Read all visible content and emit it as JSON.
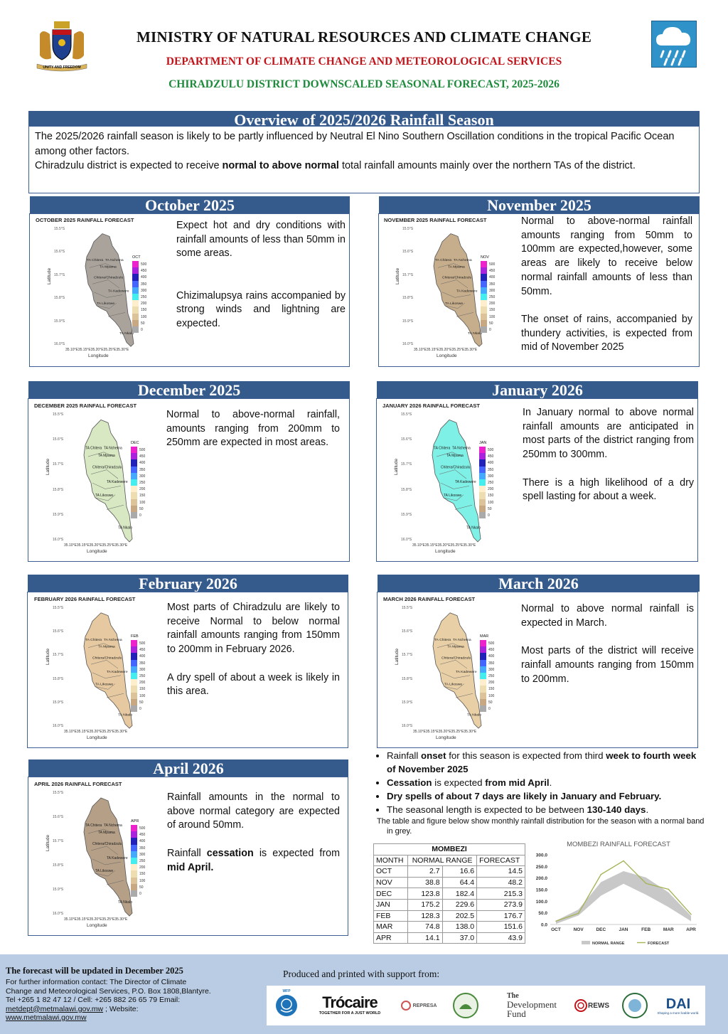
{
  "header": {
    "ministry": "MINISTRY OF NATURAL RESOURCES AND CLIMATE CHANGE",
    "department": "DEPARTMENT OF CLIMATE CHANGE AND METEOROLOGICAL SERVICES",
    "title": "CHIRADZULU DISTRICT DOWNSCALED SEASONAL FORECAST, 2025-2026",
    "coat_of_arms_motto": "UNITY AND FREEDOM",
    "icon": "rain-cloud-icon"
  },
  "overview": {
    "heading": "Overview of 2025/2026 Rainfall Season",
    "line1": "The 2025/2026 rainfall season is likely to be partly influenced by Neutral El Nino Southern Oscillation conditions in the tropical Pacific Ocean among other factors.",
    "line2_pre": "Chiradzulu district is expected to receive ",
    "line2_bold": "normal to above normal",
    "line2_post": " total rainfall amounts mainly over the northern TAs of the district."
  },
  "map_common": {
    "lat_ticks": [
      "15.5°S",
      "15.6°S",
      "15.7°S",
      "15.8°S",
      "15.9°S",
      "16.0°S"
    ],
    "lon_ticks": "35.10°E35.15°E35.20°E35.25°E35.30°E",
    "xlabel": "Longitude",
    "ylabel": "Latitude",
    "legend_values": [
      "500",
      "450",
      "400",
      "350",
      "300",
      "250",
      "200",
      "150",
      "100",
      "50",
      "0"
    ],
    "legend_colors": [
      "#ee22cc",
      "#aa22dd",
      "#2222bb",
      "#4466ff",
      "#44aaff",
      "#44eeee",
      "#ffeecc",
      "#eeddb0",
      "#ddc39a",
      "#c8a882",
      "#aaaaaa"
    ],
    "ta_labels": [
      "TA Chitera",
      "TA Nchema",
      "TA Mpama",
      "Chitera/Chiradzulu",
      "TA Kadewere",
      "TA Likoswe",
      "TA Nkalo"
    ]
  },
  "months": {
    "oct": {
      "heading": "October 2025",
      "map_title": "OCTOBER 2025 RAINFALL FORECAST",
      "legend_code": "OCT",
      "fill": "#aaa39b",
      "p1": "Expect hot and dry conditions with rainfall amounts  of less than 50mm in some areas.",
      "p2": "Chizimalupsya rains accompanied by strong winds and lightning are expected."
    },
    "nov": {
      "heading": "November 2025",
      "map_title": "NOVEMBER 2025 RAINFALL FORECAST",
      "legend_code": "NOV",
      "fill": "#c6ad8c",
      "p1": "Normal to above-normal rainfall amounts ranging from 50mm to 100mm are expected,however, some areas are likely to receive below normal rainfall amounts of less than 50mm.",
      "p2": "The onset of rains, accompanied by thundery activities, is expected from mid of November  2025"
    },
    "dec": {
      "heading": "December 2025",
      "map_title": "DECEMBER 2025 RAINFALL FORECAST",
      "legend_code": "DEC",
      "fill": "#d7e8c2",
      "p1": "Normal to above-normal rainfall,  amounts ranging from 200mm to 250mm are expected in most areas."
    },
    "jan": {
      "heading": "January 2026",
      "map_title": "JANUARY 2026 RAINFALL FORECAST",
      "legend_code": "JAN",
      "fill": "#7ff0e6",
      "p1": "In January normal to above normal rainfall amounts are anticipated in most parts of the district ranging from 250mm to 300mm.",
      "p2": "There is a high likelihood of a dry spell lasting for about a week."
    },
    "feb": {
      "heading": "February 2026",
      "map_title": "FEBRUARY 2026 RAINFALL FORECAST",
      "legend_code": "FEB",
      "fill": "#e6c9a0",
      "p1": "Most parts of Chiradzulu are likely to receive Normal to below normal rainfall amounts ranging from 150mm to 200mm   in February 2026.",
      "p2": "A dry spell of about a week is likely in this area."
    },
    "mar": {
      "heading": "March 2026",
      "map_title": "MARCH 2026 RAINFALL FORECAST",
      "legend_code": "MAR",
      "fill": "#e8cfa6",
      "p1": "Normal to above normal rainfall is expected in March.",
      "p2": "Most parts of the district will receive rainfall amounts ranging from 150mm to 200mm."
    },
    "apr": {
      "heading": "April 2026",
      "map_title": "APRIL 2026 RAINFALL FORECAST",
      "legend_code": "APR",
      "fill": "#b59f86",
      "p1": "Rainfall amounts in the normal to above normal category are  expected of around  50mm.",
      "p2_pre": "Rainfall ",
      "p2_bold": "cessation",
      "p2_mid": " is expected from ",
      "p2_bold2": "mid  April."
    }
  },
  "bullets": {
    "b1_pre": "Rainfall ",
    "b1_bold": "onset",
    "b1_mid": " for this season is expected  from third ",
    "b1_bold2": "week to fourth week of November  2025",
    "b2_bold": "Cessation",
    "b2_mid": " is expected ",
    "b2_bold2": "from mid April",
    "b2_post": ".",
    "b3_bold": "Dry spells of about 7 days are likely in  January and February.",
    "b4_pre": "The  seasonal length is expected to be between ",
    "b4_bold": "130-140 days",
    "b4_post": ".",
    "note": "The table and figure below show monthly rainfall distribution for the season with a normal band in grey."
  },
  "table": {
    "title": "MOMBEZI",
    "headers": [
      "MONTH",
      "NORMAL RANGE",
      "FORECAST"
    ],
    "rows": [
      [
        "OCT",
        "2.7",
        "16.6",
        "14.5"
      ],
      [
        "NOV",
        "38.8",
        "64.4",
        "48.2"
      ],
      [
        "DEC",
        "123.8",
        "182.4",
        "215.3"
      ],
      [
        "JAN",
        "175.2",
        "229.6",
        "273.9"
      ],
      [
        "FEB",
        "128.3",
        "202.5",
        "176.7"
      ],
      [
        "MAR",
        "74.8",
        "138.0",
        "151.6"
      ],
      [
        "APR",
        "14.1",
        "37.0",
        "43.9"
      ]
    ]
  },
  "chart_data": {
    "type": "area",
    "title": "MOMBEZI RAINFALL FORECAST",
    "categories": [
      "OCT",
      "NOV",
      "DEC",
      "JAN",
      "FEB",
      "MAR",
      "APR"
    ],
    "y_ticks": [
      "0.0",
      "50.0",
      "100.0",
      "150.0",
      "200.0",
      "250.0",
      "300.0"
    ],
    "ylim": [
      0,
      300
    ],
    "series": [
      {
        "name": "NORMAL RANGE",
        "type": "band",
        "low": [
          2.7,
          38.8,
          123.8,
          175.2,
          128.3,
          74.8,
          14.1
        ],
        "high": [
          16.6,
          64.4,
          182.4,
          229.6,
          202.5,
          138.0,
          37.0
        ],
        "color": "#c8c8c8"
      },
      {
        "name": "FORECAST",
        "type": "line",
        "values": [
          14.5,
          48.2,
          215.3,
          273.9,
          176.7,
          151.6,
          43.9
        ],
        "color": "#a9b35a"
      }
    ],
    "legend": "bottom"
  },
  "footer": {
    "update": "The forecast will be updated in December 2025",
    "contact1": "For further information contact: The Director of Climate Change and Meteorological Services, P.O. Box 1808,Blantyre.",
    "tel": "Tel +265 1 82 47 12 / Cell: +265 882 26 65 79 Email:",
    "email": "metdept@metmalawi.gov.mw",
    "website_label": " ;  Website:",
    "website": "www.metmalawi.gov.mw",
    "support": "Produced and printed with support from:",
    "logos": {
      "wfp": "WFP",
      "trocaire": "Trócaire",
      "trocaire_tag": "TOGETHER FOR A JUST WORLD",
      "represa": "REPRESA",
      "ndf_top": "The",
      "ndf": "Development Fund",
      "rews": "REWS",
      "dai": "DAI",
      "dai_tag": "Shaping a more livable world."
    }
  }
}
